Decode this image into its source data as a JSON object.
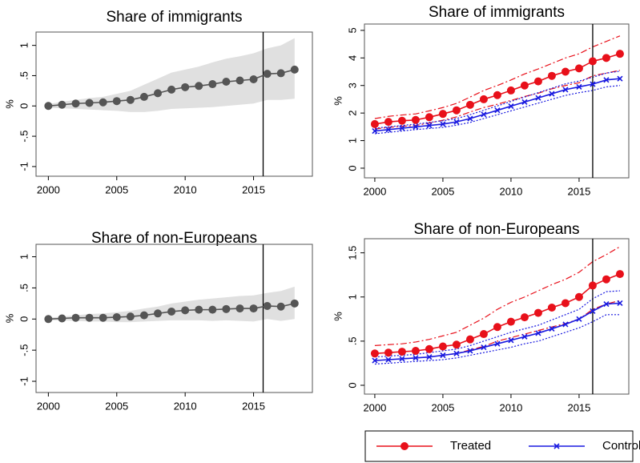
{
  "chart_data": [
    {
      "type": "line",
      "title": "Share of immigrants",
      "ylabel": "%",
      "x": [
        2000,
        2001,
        2002,
        2003,
        2004,
        2005,
        2006,
        2007,
        2008,
        2009,
        2010,
        2011,
        2012,
        2013,
        2014,
        2015,
        2016,
        2017,
        2018
      ],
      "xlim": [
        1999.1,
        2019.3
      ],
      "xticks": [
        2000,
        2005,
        2010,
        2015
      ],
      "ylim": [
        -1.16,
        1.22
      ],
      "yticks": [
        -1,
        {
          "value": -0.5,
          "label": "-.5"
        },
        0,
        {
          "value": 0.5,
          "label": ".5"
        },
        1
      ],
      "vline": 2015.7,
      "band_color": "#e0e0e0",
      "series": [
        {
          "color": "#555555",
          "marker": "o",
          "values": [
            0,
            0.02,
            0.04,
            0.05,
            0.06,
            0.08,
            0.1,
            0.15,
            0.21,
            0.27,
            0.31,
            0.33,
            0.36,
            0.4,
            0.42,
            0.44,
            0.53,
            0.54,
            0.6
          ],
          "lower": [
            -0.03,
            -0.04,
            -0.05,
            -0.06,
            -0.07,
            -0.08,
            -0.1,
            -0.1,
            -0.08,
            -0.05,
            -0.04,
            -0.03,
            -0.02,
            0,
            0.02,
            0.04,
            0.1,
            0.1,
            0.12
          ],
          "upper": [
            0.03,
            0.07,
            0.1,
            0.13,
            0.15,
            0.2,
            0.25,
            0.35,
            0.45,
            0.55,
            0.6,
            0.65,
            0.72,
            0.78,
            0.82,
            0.87,
            0.95,
            1.0,
            1.12
          ]
        }
      ]
    },
    {
      "type": "line",
      "title": "Share of immigrants",
      "ylabel": "%",
      "x": [
        2000,
        2001,
        2002,
        2003,
        2004,
        2005,
        2006,
        2007,
        2008,
        2009,
        2010,
        2011,
        2012,
        2013,
        2014,
        2015,
        2016,
        2017,
        2018
      ],
      "xlim": [
        1999.24,
        2018.65
      ],
      "xticks": [
        2000,
        2005,
        2010,
        2015
      ],
      "ylim": [
        -0.35,
        5.23
      ],
      "yticks": [
        0,
        1,
        2,
        3,
        4,
        5
      ],
      "vline": 2016,
      "series": [
        {
          "color": "#e8101a",
          "marker": "o",
          "ci_style": "dashdot",
          "values": [
            1.6,
            1.68,
            1.72,
            1.75,
            1.85,
            1.97,
            2.1,
            2.3,
            2.5,
            2.65,
            2.82,
            3.0,
            3.15,
            3.35,
            3.5,
            3.62,
            3.88,
            4.0,
            4.15
          ],
          "lower": [
            1.42,
            1.48,
            1.52,
            1.55,
            1.64,
            1.74,
            1.86,
            2.04,
            2.2,
            2.32,
            2.46,
            2.6,
            2.72,
            2.88,
            3.0,
            3.1,
            3.35,
            3.45,
            3.55
          ],
          "upper": [
            1.8,
            1.88,
            1.93,
            1.97,
            2.08,
            2.2,
            2.35,
            2.58,
            2.82,
            3.0,
            3.2,
            3.42,
            3.6,
            3.8,
            4.0,
            4.15,
            4.4,
            4.6,
            4.8
          ]
        },
        {
          "color": "#1a1ae0",
          "marker": "x",
          "ci_style": "dot",
          "values": [
            1.35,
            1.4,
            1.45,
            1.5,
            1.55,
            1.6,
            1.68,
            1.8,
            1.95,
            2.1,
            2.25,
            2.4,
            2.55,
            2.7,
            2.85,
            2.95,
            3.05,
            3.2,
            3.25
          ],
          "lower": [
            1.25,
            1.3,
            1.35,
            1.4,
            1.44,
            1.48,
            1.56,
            1.66,
            1.8,
            1.94,
            2.08,
            2.22,
            2.36,
            2.5,
            2.64,
            2.74,
            2.82,
            2.95,
            3.0
          ],
          "upper": [
            1.45,
            1.5,
            1.55,
            1.6,
            1.66,
            1.72,
            1.8,
            1.94,
            2.1,
            2.26,
            2.42,
            2.58,
            2.74,
            2.9,
            3.06,
            3.16,
            3.3,
            3.45,
            3.52
          ]
        }
      ]
    },
    {
      "type": "line",
      "title": "Share of non-Europeans",
      "ylabel": "%",
      "x": [
        2000,
        2001,
        2002,
        2003,
        2004,
        2005,
        2006,
        2007,
        2008,
        2009,
        2010,
        2011,
        2012,
        2013,
        2014,
        2015,
        2016,
        2017,
        2018
      ],
      "xlim": [
        1999.1,
        2019.3
      ],
      "xticks": [
        2000,
        2005,
        2010,
        2015
      ],
      "ylim": [
        -1.18,
        1.2
      ],
      "yticks": [
        -1,
        {
          "value": -0.5,
          "label": "-.5"
        },
        0,
        {
          "value": 0.5,
          "label": ".5"
        },
        1
      ],
      "vline": 2015.7,
      "band_color": "#e0e0e0",
      "series": [
        {
          "color": "#555555",
          "marker": "o",
          "values": [
            0,
            0.01,
            0.02,
            0.02,
            0.02,
            0.03,
            0.04,
            0.06,
            0.09,
            0.12,
            0.14,
            0.15,
            0.15,
            0.16,
            0.17,
            0.17,
            0.21,
            0.2,
            0.25
          ],
          "lower": [
            -0.02,
            -0.02,
            -0.03,
            -0.04,
            -0.04,
            -0.05,
            -0.05,
            -0.04,
            -0.03,
            -0.02,
            -0.02,
            -0.02,
            -0.03,
            -0.02,
            -0.03,
            -0.04,
            0,
            -0.03,
            0
          ],
          "upper": [
            0.02,
            0.04,
            0.06,
            0.08,
            0.09,
            0.11,
            0.13,
            0.17,
            0.2,
            0.25,
            0.28,
            0.31,
            0.33,
            0.35,
            0.37,
            0.38,
            0.42,
            0.45,
            0.52
          ]
        }
      ]
    },
    {
      "type": "line",
      "title": "Share of non-Europeans",
      "ylabel": "%",
      "x": [
        2000,
        2001,
        2002,
        2003,
        2004,
        2005,
        2006,
        2007,
        2008,
        2009,
        2010,
        2011,
        2012,
        2013,
        2014,
        2015,
        2016,
        2017,
        2018
      ],
      "xlim": [
        1999.24,
        2018.65
      ],
      "xticks": [
        2000,
        2005,
        2010,
        2015
      ],
      "ylim": [
        -0.1,
        1.66
      ],
      "yticks": [
        0,
        {
          "value": 0.5,
          "label": ".5"
        },
        1,
        1.5
      ],
      "vline": 2016,
      "series": [
        {
          "name": "Treated",
          "color": "#e8101a",
          "marker": "o",
          "ci_style": "dashdot",
          "values": [
            0.36,
            0.37,
            0.38,
            0.39,
            0.41,
            0.44,
            0.46,
            0.52,
            0.58,
            0.66,
            0.72,
            0.77,
            0.82,
            0.88,
            0.93,
            1.0,
            1.13,
            1.2,
            1.26
          ],
          "lower": [
            0.28,
            0.29,
            0.3,
            0.31,
            0.32,
            0.34,
            0.36,
            0.4,
            0.44,
            0.5,
            0.54,
            0.58,
            0.62,
            0.66,
            0.7,
            0.75,
            0.86,
            0.92,
            0.96
          ],
          "upper": [
            0.45,
            0.46,
            0.47,
            0.49,
            0.52,
            0.56,
            0.6,
            0.68,
            0.76,
            0.86,
            0.94,
            1.0,
            1.07,
            1.14,
            1.2,
            1.28,
            1.4,
            1.48,
            1.57
          ]
        },
        {
          "name": "Control",
          "color": "#1a1ae0",
          "marker": "x",
          "ci_style": "dot",
          "values": [
            0.28,
            0.29,
            0.3,
            0.31,
            0.32,
            0.34,
            0.36,
            0.39,
            0.43,
            0.47,
            0.51,
            0.55,
            0.59,
            0.64,
            0.69,
            0.75,
            0.84,
            0.92,
            0.93
          ],
          "lower": [
            0.24,
            0.25,
            0.26,
            0.27,
            0.28,
            0.29,
            0.31,
            0.34,
            0.37,
            0.4,
            0.43,
            0.47,
            0.5,
            0.55,
            0.6,
            0.65,
            0.72,
            0.8,
            0.8
          ],
          "upper": [
            0.32,
            0.33,
            0.34,
            0.35,
            0.37,
            0.39,
            0.41,
            0.45,
            0.5,
            0.55,
            0.6,
            0.64,
            0.68,
            0.74,
            0.8,
            0.86,
            0.98,
            1.06,
            1.07
          ]
        }
      ]
    }
  ]
}
